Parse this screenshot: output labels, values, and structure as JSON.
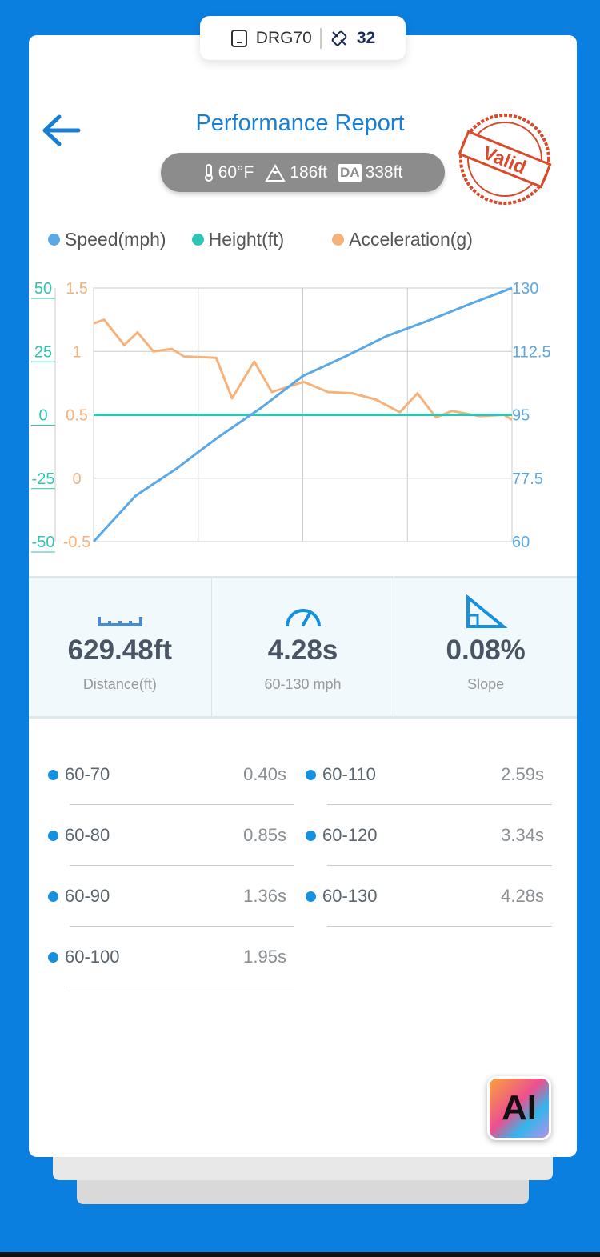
{
  "header": {
    "device": "DRG70",
    "satellites": "32",
    "title": "Performance Report",
    "temperature": "60°F",
    "altitude": "186ft",
    "density_altitude_label": "DA",
    "density_altitude": "338ft",
    "stamp_text": "Valid"
  },
  "chart_data": {
    "type": "line",
    "legend": [
      "Speed(mph)",
      "Height(ft)",
      "Acceleration(g)"
    ],
    "colors": {
      "speed": "#5aa9e6",
      "height": "#2ec4b6",
      "accel": "#f7b27a"
    },
    "left_axis_height": {
      "range": [
        -50,
        50
      ],
      "ticks": [
        "50",
        "25",
        "0",
        "-25",
        "-50"
      ]
    },
    "left_axis_accel": {
      "range": [
        -0.5,
        1.5
      ],
      "ticks": [
        "1.5",
        "1",
        "0.5",
        "0",
        "-0.5"
      ]
    },
    "right_axis_speed": {
      "range": [
        60,
        130
      ],
      "ticks": [
        "130",
        "112.5",
        "95",
        "77.5",
        "60"
      ]
    },
    "x_progress": [
      0,
      0.1,
      0.2,
      0.25,
      0.3,
      0.4,
      0.5,
      0.6,
      0.7,
      0.8,
      0.9,
      1.0
    ],
    "speed": [
      60,
      72.6,
      80.3,
      84.7,
      89,
      96.9,
      105.7,
      111,
      116.7,
      121,
      125.6,
      130
    ],
    "height": [
      0,
      0,
      0,
      0,
      0,
      0,
      0,
      0,
      0,
      0,
      0,
      0
    ],
    "accel_x": [
      0,
      0.025,
      0.073,
      0.105,
      0.143,
      0.187,
      0.216,
      0.293,
      0.331,
      0.384,
      0.426,
      0.502,
      0.56,
      0.618,
      0.675,
      0.732,
      0.774,
      0.818,
      0.857,
      0.923,
      0.981,
      1.0
    ],
    "accel": [
      1.22,
      1.25,
      1.05,
      1.15,
      1.0,
      1.02,
      0.96,
      0.95,
      0.63,
      0.92,
      0.68,
      0.76,
      0.68,
      0.67,
      0.62,
      0.52,
      0.67,
      0.48,
      0.53,
      0.49,
      0.5,
      0.46
    ]
  },
  "stats": [
    {
      "value": "629.48ft",
      "label": "Distance(ft)"
    },
    {
      "value": "4.28s",
      "label": "60-130 mph"
    },
    {
      "value": "0.08%",
      "label": "Slope"
    }
  ],
  "splits": [
    {
      "range": "60-70",
      "time": "0.40s"
    },
    {
      "range": "60-80",
      "time": "0.85s"
    },
    {
      "range": "60-90",
      "time": "1.36s"
    },
    {
      "range": "60-100",
      "time": "1.95s"
    },
    {
      "range": "60-110",
      "time": "2.59s"
    },
    {
      "range": "60-120",
      "time": "3.34s"
    },
    {
      "range": "60-130",
      "time": "4.28s"
    }
  ],
  "ai_button": "AI"
}
